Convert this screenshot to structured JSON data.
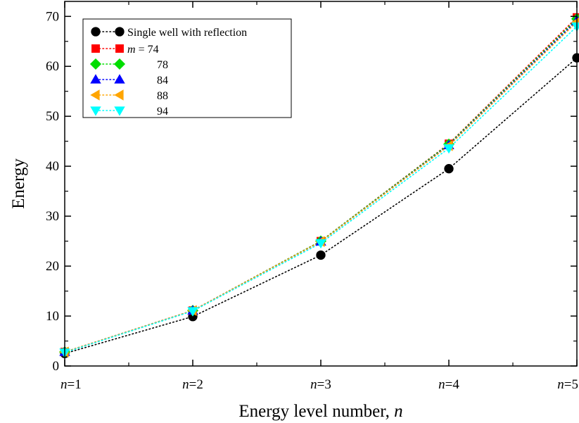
{
  "chart_data": {
    "type": "line",
    "title": "",
    "xlabel": "Energy level number, ",
    "xlabel_var": "n",
    "ylabel": "Energy",
    "categories": [
      {
        "var": "n",
        "eq": "=1"
      },
      {
        "var": "n",
        "eq": "=2"
      },
      {
        "var": "n",
        "eq": "=3"
      },
      {
        "var": "n",
        "eq": "=4"
      },
      {
        "var": "n",
        "eq": "=5"
      }
    ],
    "x": [
      1,
      2,
      3,
      4,
      5
    ],
    "xlim": [
      1,
      5
    ],
    "ylim": [
      0,
      73
    ],
    "yticks": [
      0,
      10,
      20,
      30,
      40,
      50,
      60,
      70
    ],
    "grid": false,
    "legend_position": "top-left",
    "line_style": "dotted",
    "series": [
      {
        "name": "Single well with reflection",
        "legend_prefix": "",
        "legend_value": "",
        "marker": "circle",
        "color": "#000000",
        "values": [
          2.5,
          9.9,
          22.2,
          39.5,
          61.7
        ]
      },
      {
        "name": "m = 74",
        "legend_prefix": "m",
        "legend_value": " = 74",
        "marker": "square",
        "color": "#ff0000",
        "values": [
          2.8,
          11.1,
          25.0,
          44.5,
          69.8
        ]
      },
      {
        "name": "78",
        "legend_prefix": "",
        "legend_value": "78",
        "marker": "diamond",
        "color": "#00dd00",
        "values": [
          2.8,
          11.1,
          25.0,
          44.4,
          69.5
        ]
      },
      {
        "name": "84",
        "legend_prefix": "",
        "legend_value": "84",
        "marker": "triangle-up",
        "color": "#0000ff",
        "values": [
          2.8,
          11.1,
          24.9,
          44.2,
          69.2
        ]
      },
      {
        "name": "88",
        "legend_prefix": "",
        "legend_value": "88",
        "marker": "triangle-left",
        "color": "#ffa500",
        "values": [
          2.8,
          11.1,
          24.9,
          44.1,
          68.9
        ]
      },
      {
        "name": "94",
        "legend_prefix": "",
        "legend_value": "94",
        "marker": "triangle-down",
        "color": "#00ffff",
        "values": [
          2.7,
          11.0,
          24.6,
          43.6,
          68.0
        ]
      }
    ]
  }
}
